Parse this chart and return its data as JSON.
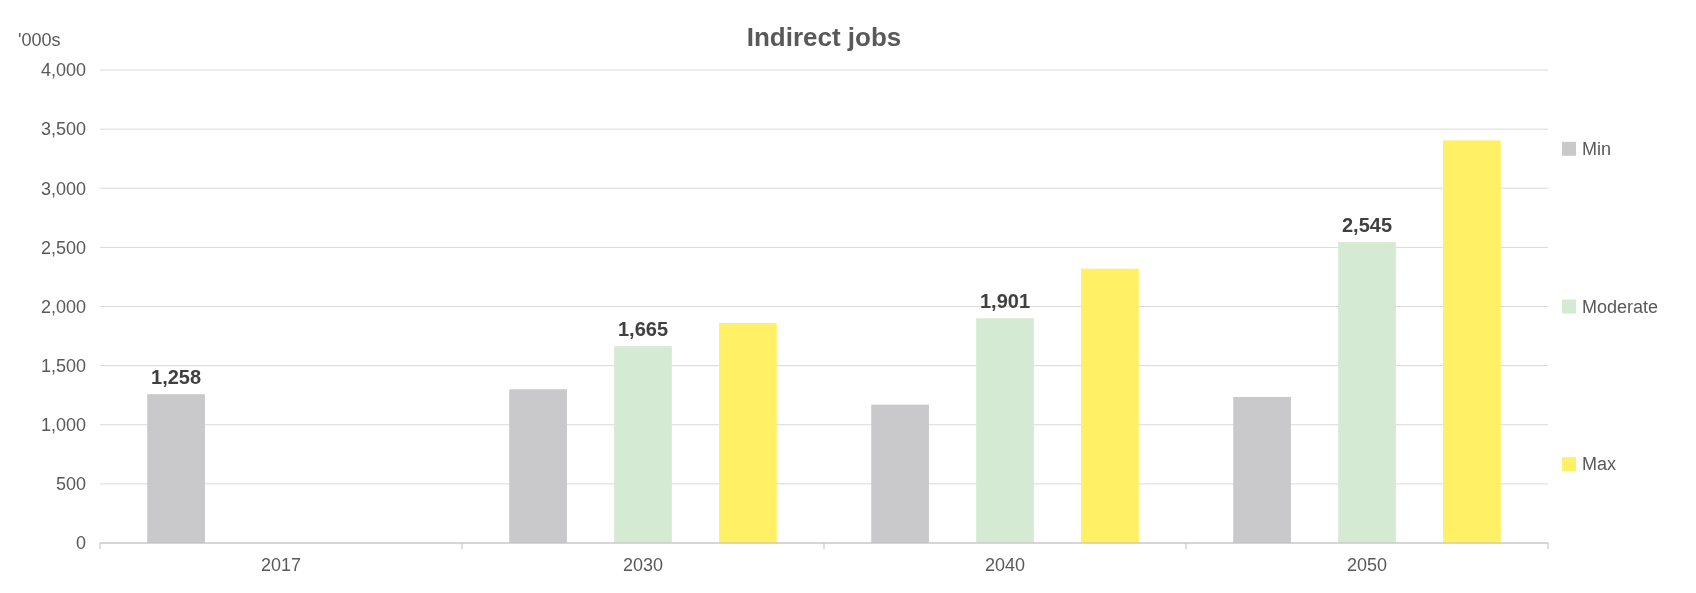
{
  "chart_data": {
    "type": "bar",
    "title": "Indirect jobs",
    "ylabel": "'000s",
    "categories": [
      "2017",
      "2030",
      "2040",
      "2050"
    ],
    "series": [
      {
        "name": "Min",
        "color": "#c9c9cb",
        "values": [
          1258,
          1300,
          1170,
          1235
        ],
        "value_labels": [
          "1,258",
          null,
          null,
          null
        ]
      },
      {
        "name": "Moderate",
        "color": "#d5ead3",
        "values": [
          null,
          1665,
          1901,
          2545
        ],
        "value_labels": [
          null,
          "1,665",
          "1,901",
          "2,545"
        ]
      },
      {
        "name": "Max",
        "color": "#fff066",
        "values": [
          null,
          1860,
          2320,
          3405
        ],
        "value_labels": [
          null,
          null,
          null,
          null
        ]
      }
    ],
    "ylim": [
      0,
      4000
    ],
    "yticks": [
      {
        "value": 0,
        "label": "0"
      },
      {
        "value": 500,
        "label": "500"
      },
      {
        "value": 1000,
        "label": "1,000"
      },
      {
        "value": 1500,
        "label": "1,500"
      },
      {
        "value": 2000,
        "label": "2,000"
      },
      {
        "value": 2500,
        "label": "2,500"
      },
      {
        "value": 3000,
        "label": "3,000"
      },
      {
        "value": 3500,
        "label": "3,500"
      },
      {
        "value": 4000,
        "label": "4,000"
      }
    ],
    "grid": "y",
    "legend": "right"
  }
}
